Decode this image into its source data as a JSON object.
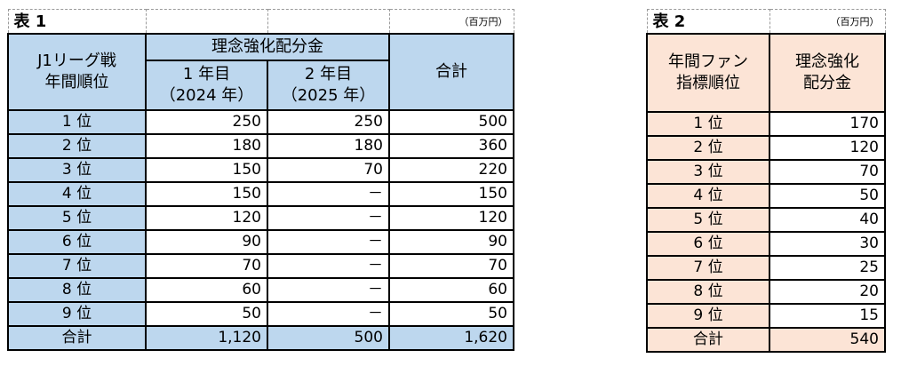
{
  "table1": {
    "caption": "表 1",
    "unit": "（百万円）",
    "header": {
      "rank_label_line1": "J1リーグ戦",
      "rank_label_line2": "年間順位",
      "group_label": "理念強化配分金",
      "year1_line1": "1 年目",
      "year1_line2": "（2024 年）",
      "year2_line1": "2 年目",
      "year2_line2": "（2025 年）",
      "total_label": "合計"
    },
    "rows": [
      {
        "rank": "1 位",
        "y1": "250",
        "y2": "250",
        "total": "500"
      },
      {
        "rank": "2 位",
        "y1": "180",
        "y2": "180",
        "total": "360"
      },
      {
        "rank": "3 位",
        "y1": "150",
        "y2": "70",
        "total": "220"
      },
      {
        "rank": "4 位",
        "y1": "150",
        "y2": "－",
        "total": "150"
      },
      {
        "rank": "5 位",
        "y1": "120",
        "y2": "－",
        "total": "120"
      },
      {
        "rank": "6 位",
        "y1": "90",
        "y2": "－",
        "total": "90"
      },
      {
        "rank": "7 位",
        "y1": "70",
        "y2": "－",
        "total": "70"
      },
      {
        "rank": "8 位",
        "y1": "60",
        "y2": "－",
        "total": "60"
      },
      {
        "rank": "9 位",
        "y1": "50",
        "y2": "－",
        "total": "50"
      }
    ],
    "totals": {
      "rank": "合計",
      "y1": "1,120",
      "y2": "500",
      "total": "1,620"
    },
    "header_color": "#bdd7ee"
  },
  "table2": {
    "caption": "表 2",
    "unit": "（百万円）",
    "header": {
      "rank_label_line1": "年間ファン",
      "rank_label_line2": "指標順位",
      "amount_line1": "理念強化",
      "amount_line2": "配分金"
    },
    "rows": [
      {
        "rank": "1 位",
        "amount": "170"
      },
      {
        "rank": "2 位",
        "amount": "120"
      },
      {
        "rank": "3 位",
        "amount": "70"
      },
      {
        "rank": "4 位",
        "amount": "50"
      },
      {
        "rank": "5 位",
        "amount": "40"
      },
      {
        "rank": "6 位",
        "amount": "30"
      },
      {
        "rank": "7 位",
        "amount": "25"
      },
      {
        "rank": "8 位",
        "amount": "20"
      },
      {
        "rank": "9 位",
        "amount": "15"
      }
    ],
    "totals": {
      "rank": "合計",
      "amount": "540"
    },
    "header_color": "#fce4d6"
  }
}
